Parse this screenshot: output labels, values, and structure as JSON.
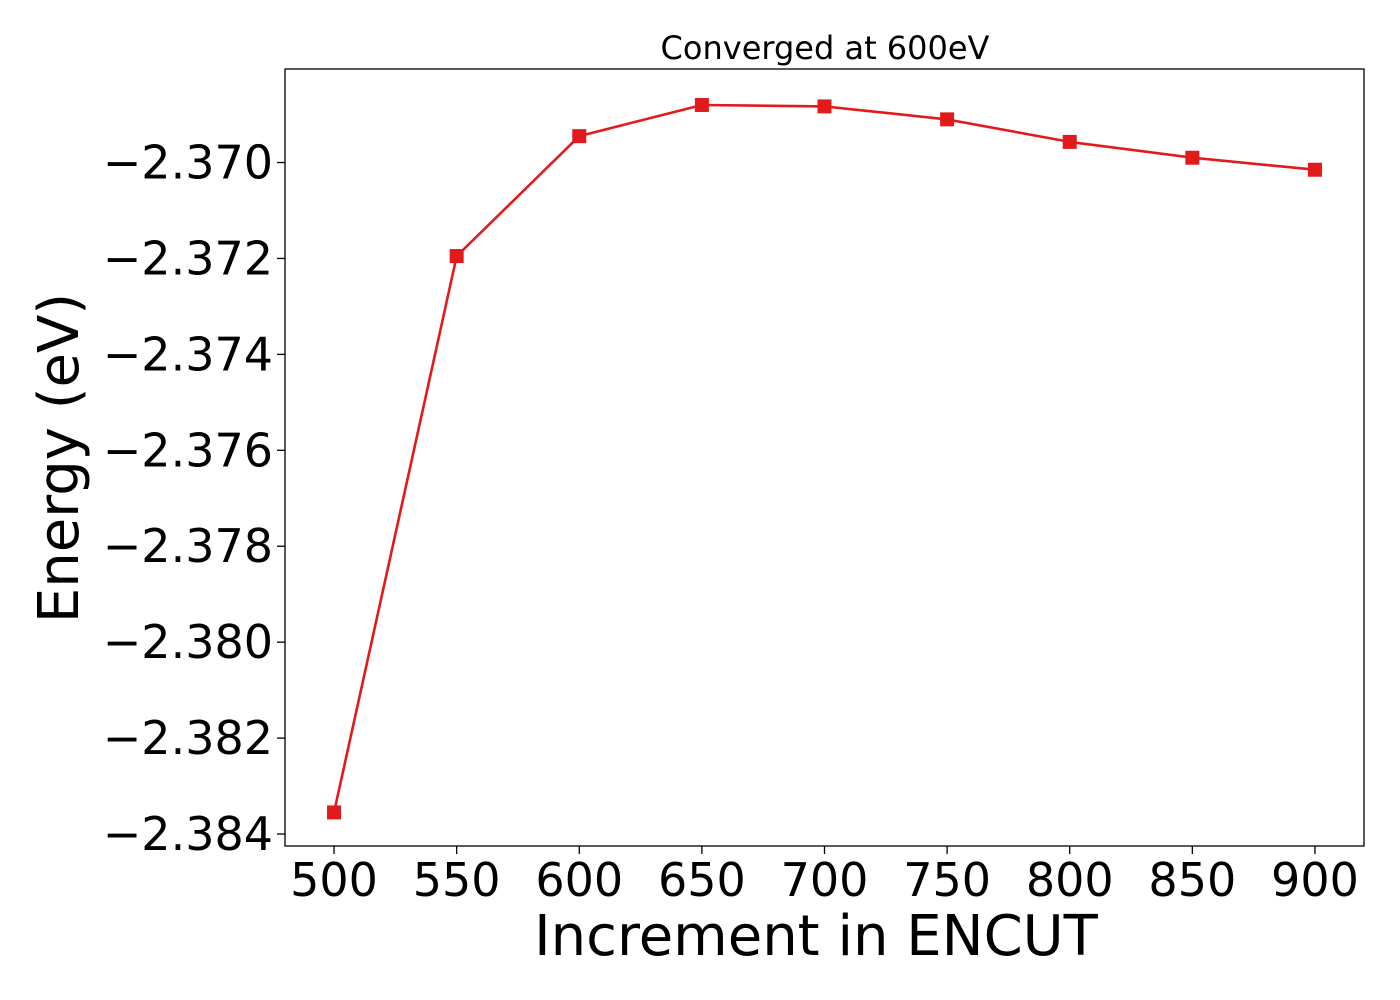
{
  "chart_data": {
    "type": "line",
    "title": "Converged at 600eV",
    "xlabel": "Increment in ENCUT",
    "ylabel": "Energy (eV)",
    "x": [
      500,
      550,
      600,
      650,
      700,
      750,
      800,
      850,
      900
    ],
    "series": [
      {
        "values": [
          -2.38355,
          -2.37195,
          -2.36945,
          -2.3688,
          -2.36883,
          -2.3691,
          -2.36957,
          -2.3699,
          -2.37015
        ],
        "color": "#e31a1c",
        "marker": "square"
      }
    ],
    "xticks": [
      500,
      550,
      600,
      650,
      700,
      750,
      800,
      850,
      900
    ],
    "xtick_labels": [
      "500",
      "550",
      "600",
      "650",
      "700",
      "750",
      "800",
      "850",
      "900"
    ],
    "yticks": [
      -2.384,
      -2.382,
      -2.38,
      -2.378,
      -2.376,
      -2.374,
      -2.372,
      -2.37
    ],
    "ytick_labels": [
      "−2.384",
      "−2.382",
      "−2.380",
      "−2.378",
      "−2.376",
      "−2.374",
      "−2.372",
      "−2.370"
    ],
    "xlim": [
      480,
      920
    ],
    "ylim": [
      -2.38425,
      -2.36805
    ],
    "grid": false,
    "legend": "none"
  }
}
